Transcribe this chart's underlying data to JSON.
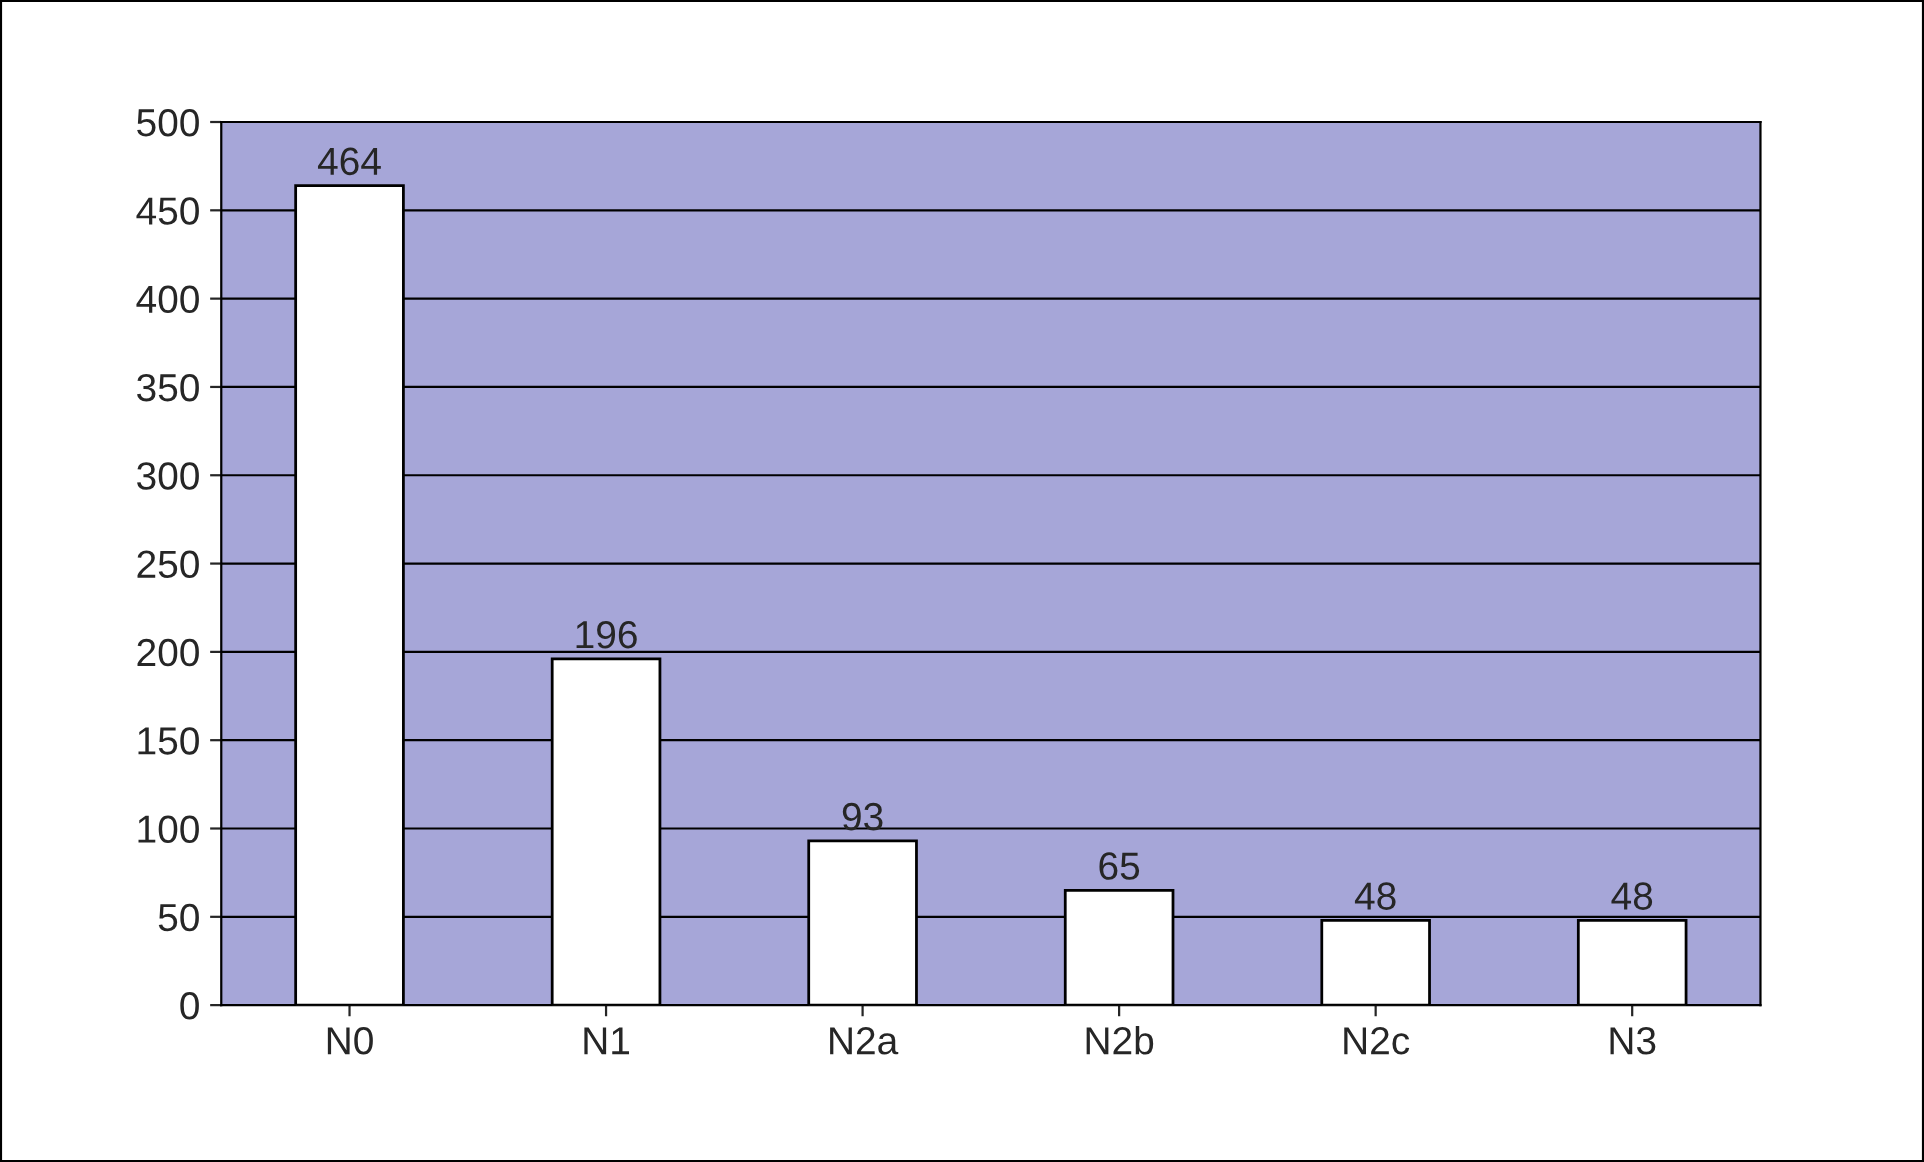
{
  "chart_data": {
    "type": "bar",
    "categories": [
      "N0",
      "N1",
      "N2a",
      "N2b",
      "N2c",
      "N3"
    ],
    "values": [
      464,
      196,
      93,
      65,
      48,
      48
    ],
    "color": "#ffffff",
    "ylim": [
      0,
      500
    ],
    "yticks": [
      0,
      50,
      100,
      150,
      200,
      250,
      300,
      350,
      400,
      450,
      500
    ],
    "grid": "y",
    "data_labels": true,
    "legend": false
  }
}
